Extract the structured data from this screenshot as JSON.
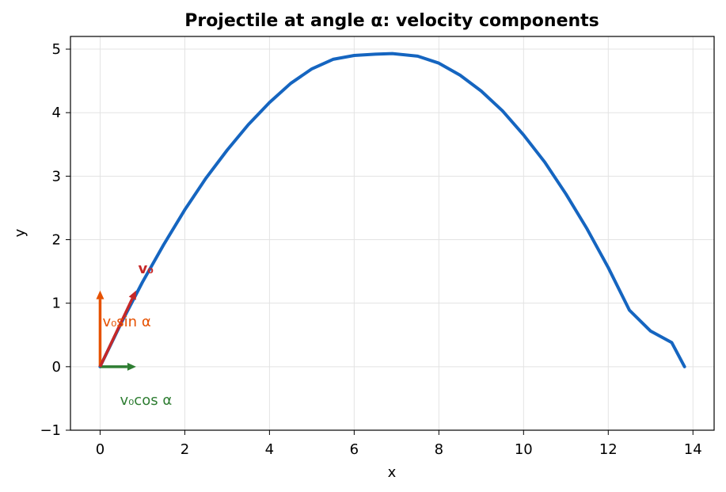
{
  "chart_data": {
    "type": "line",
    "title": "Projectile at angle α: velocity components",
    "xlabel": "x",
    "ylabel": "y",
    "xlim": [
      -0.7,
      14.5
    ],
    "ylim": [
      -1,
      5.2
    ],
    "xticks": [
      0,
      2,
      4,
      6,
      8,
      10,
      12,
      14
    ],
    "xtick_labels": [
      "0",
      "2",
      "4",
      "6",
      "8",
      "10",
      "12",
      "14"
    ],
    "yticks": [
      -1,
      0,
      1,
      2,
      3,
      4,
      5
    ],
    "ytick_labels": [
      "−1",
      "0",
      "1",
      "2",
      "3",
      "4",
      "5"
    ],
    "grid": true,
    "series": [
      {
        "color": "#1565c0",
        "x": [
          0,
          0.5,
          1,
          1.5,
          2,
          2.5,
          3,
          3.5,
          4,
          4.5,
          5,
          5.5,
          6,
          6.5,
          6.9,
          7.5,
          8,
          8.5,
          9,
          9.5,
          10,
          10.5,
          11,
          11.5,
          12,
          12.5,
          13,
          13.5,
          13.8
        ],
        "y": [
          0,
          0.69,
          1.33,
          1.92,
          2.47,
          2.97,
          3.41,
          3.81,
          4.16,
          4.46,
          4.69,
          4.84,
          4.9,
          4.92,
          4.93,
          4.89,
          4.78,
          4.59,
          4.34,
          4.03,
          3.65,
          3.22,
          2.72,
          2.17,
          1.56,
          0.89,
          0.56,
          0.38,
          0
        ]
      }
    ],
    "vectors": [
      {
        "label": "v₀",
        "dx": 0.85,
        "dy": 1.2,
        "color": "#c62828"
      },
      {
        "label": "v₀sin α",
        "dx": 0,
        "dy": 1.2,
        "color": "#e65100"
      },
      {
        "label": "v₀cos α",
        "dx": 0.85,
        "dy": 0,
        "color": "#2e7d32"
      }
    ]
  }
}
